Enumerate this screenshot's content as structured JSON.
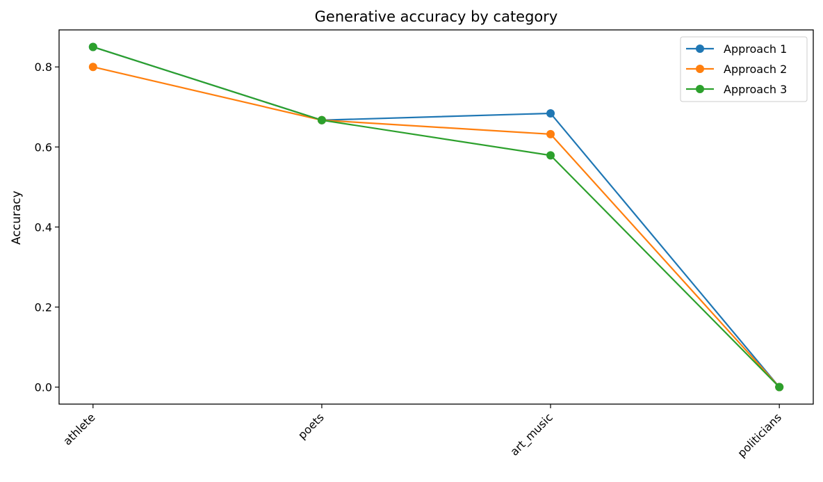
{
  "chart_data": {
    "type": "line",
    "title": "Generative accuracy by category",
    "xlabel": "",
    "ylabel": "Accuracy",
    "categories": [
      "athlete",
      "poets",
      "art_music",
      "politicians"
    ],
    "ylim": [
      -0.0425,
      0.8925
    ],
    "yticks": [
      0.0,
      0.2,
      0.4,
      0.6,
      0.8
    ],
    "ytick_labels": [
      "0.0",
      "0.2",
      "0.4",
      "0.6",
      "0.8"
    ],
    "grid": false,
    "legend_position": "top-right",
    "series": [
      {
        "name": "Approach 1",
        "color": "#1f77b4",
        "values": [
          0.85,
          0.667,
          0.684,
          0.0
        ]
      },
      {
        "name": "Approach 2",
        "color": "#ff7f0e",
        "values": [
          0.8,
          0.667,
          0.632,
          0.0
        ]
      },
      {
        "name": "Approach 3",
        "color": "#2ca02c",
        "values": [
          0.85,
          0.667,
          0.579,
          0.0
        ]
      }
    ]
  }
}
